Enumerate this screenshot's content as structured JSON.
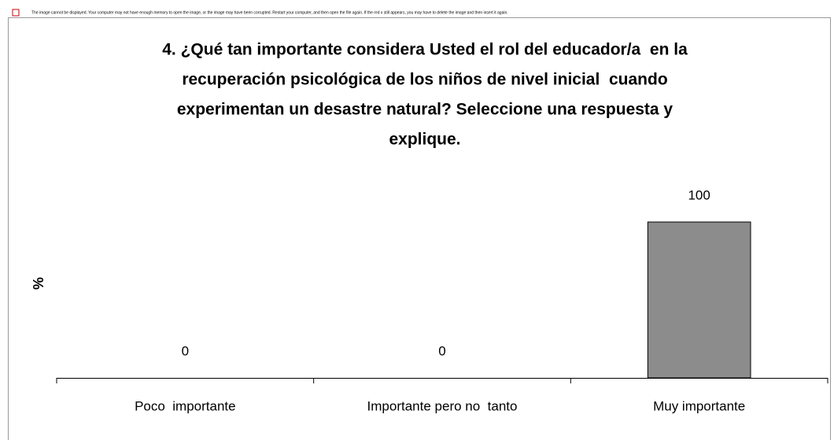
{
  "notice": "The image cannot be displayed. Your computer may not have enough memory to open the image, or the image may have been corrupted. Restart your computer, and then open the file again. If the red x still appears, you may have to delete the image and then insert it again.",
  "chart_data": {
    "type": "bar",
    "title": [
      "4. ¿Qué tan importante considera Usted el rol del educador/a  en la",
      "recuperación psicológica de los niños de nivel inicial  cuando",
      "experimentan un desastre natural? Seleccione una respuesta y",
      "explique."
    ],
    "ylabel": "%",
    "categories": [
      "Poco  importante",
      "Importante pero no  tanto",
      "Muy importante"
    ],
    "values": [
      0,
      0,
      100
    ],
    "color": "#8c8c8c",
    "ylim": [
      0,
      100
    ]
  }
}
